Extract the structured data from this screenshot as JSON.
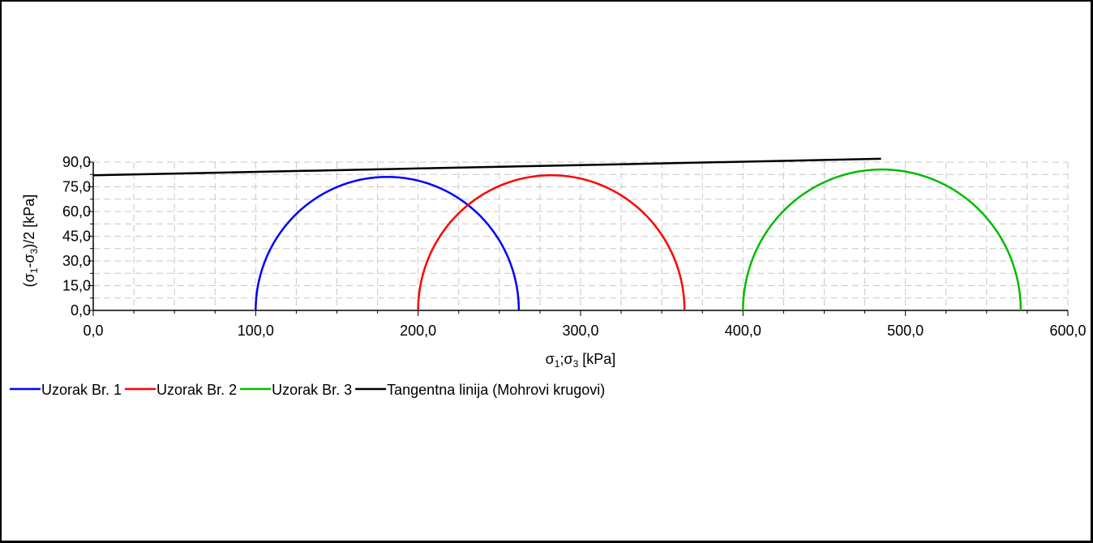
{
  "chart_data": {
    "type": "line",
    "xlabel_base": "σ",
    "xlabel_sub1": "1",
    "xlabel_sep": ";σ",
    "xlabel_sub2": "3",
    "xlabel_unit": " [kPa]",
    "ylabel_prefix": "(σ",
    "ylabel_sub1": "1",
    "ylabel_mid": "-σ",
    "ylabel_sub2": "3",
    "ylabel_suffix": ")/2 [kPa]",
    "xlim": [
      0,
      600
    ],
    "ylim": [
      0,
      90
    ],
    "x_ticks": [
      0,
      100,
      200,
      300,
      400,
      500,
      600
    ],
    "x_tick_labels": [
      "0,0",
      "100,0",
      "200,0",
      "300,0",
      "400,0",
      "500,0",
      "600,0"
    ],
    "y_ticks": [
      0,
      15,
      30,
      45,
      60,
      75,
      90
    ],
    "y_tick_labels": [
      "0,0",
      "15,0",
      "30,0",
      "45,0",
      "60,0",
      "75,0",
      "90,0"
    ],
    "grid": true,
    "legend_position": "bottom-left",
    "circles": [
      {
        "name": "Uzorak Br. 1",
        "color": "#0000ff",
        "sigma3": 100,
        "sigma1": 262
      },
      {
        "name": "Uzorak Br. 2",
        "color": "#ff0000",
        "sigma3": 200,
        "sigma1": 364
      },
      {
        "name": "Uzorak Br. 3",
        "color": "#00bb00",
        "sigma3": 400,
        "sigma1": 571
      }
    ],
    "tangent": {
      "name": "Tangentna linija (Mohrovi krugovi)",
      "color": "#000000",
      "x": [
        0,
        485
      ],
      "y": [
        82,
        92
      ]
    }
  }
}
